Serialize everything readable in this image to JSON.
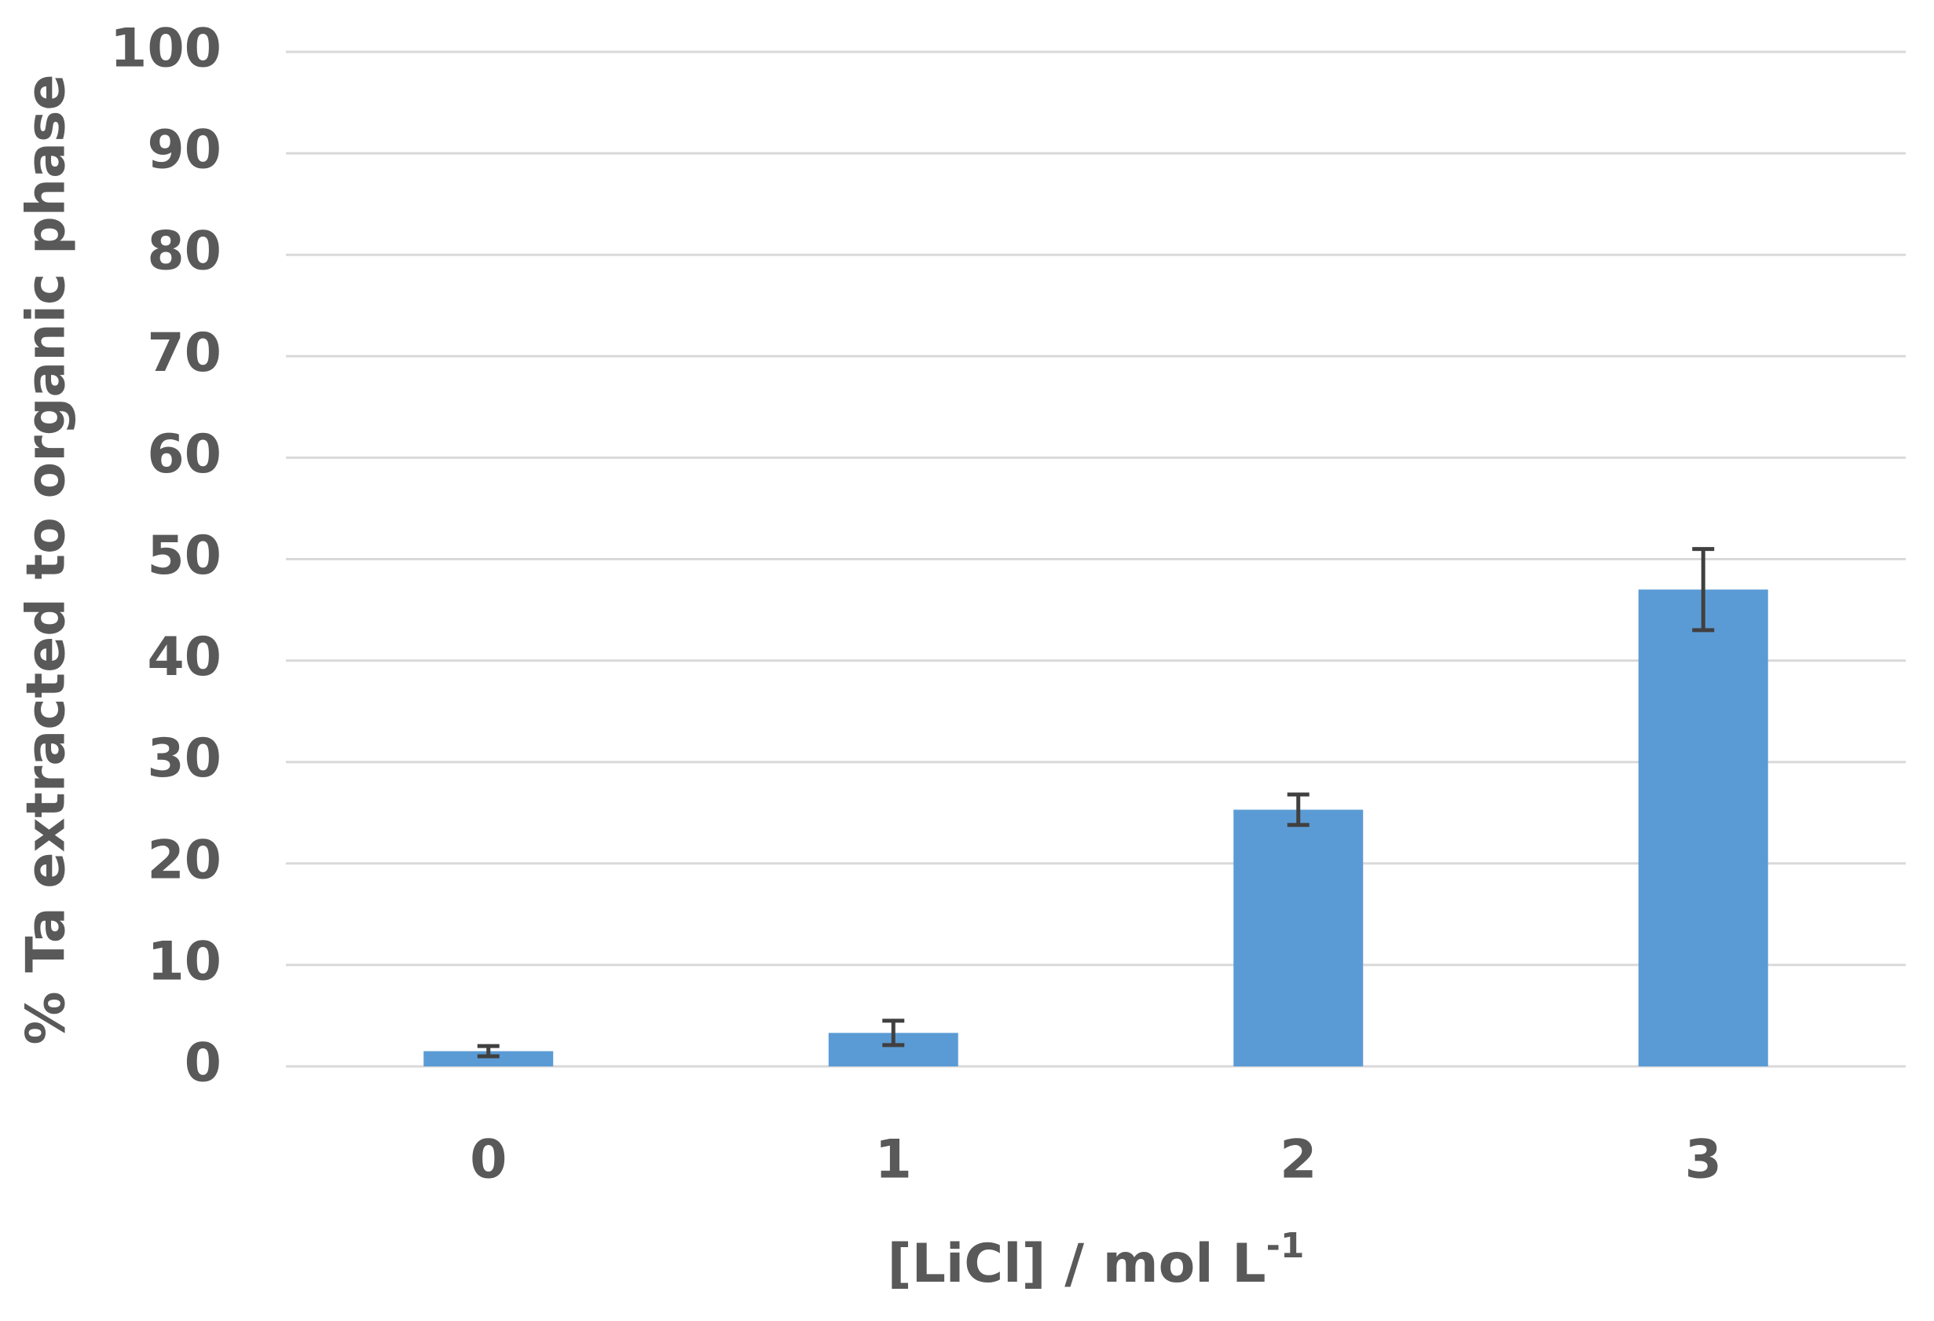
{
  "chart_data": {
    "type": "bar",
    "x_label": "[LiCl] / mol L",
    "x_label_superscript": "-1",
    "y_label": "% Ta extracted to organic phase",
    "categories": [
      "0",
      "1",
      "2",
      "3"
    ],
    "values": [
      1.5,
      3.3,
      25.3,
      47
    ],
    "errors": [
      0.5,
      1.2,
      1.5,
      4
    ],
    "color": "#5b9bd5",
    "error_color": "#404040",
    "ylim": [
      0,
      100
    ],
    "yticks": [
      0,
      10,
      20,
      30,
      40,
      50,
      60,
      70,
      80,
      90,
      100
    ],
    "grid": true
  }
}
